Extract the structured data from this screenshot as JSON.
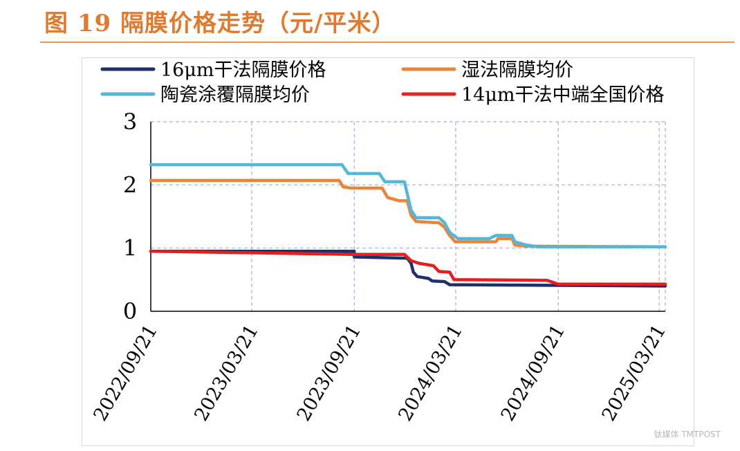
{
  "figure": {
    "title": "图 19  隔膜价格走势（元/平米）"
  },
  "chart_data": {
    "type": "line",
    "title": "",
    "xlabel": "",
    "ylabel": "",
    "ylim": [
      0,
      3
    ],
    "yticks": [
      "0",
      "1",
      "2",
      "3"
    ],
    "x_range": [
      "2022/09/21",
      "2025/04/01"
    ],
    "xticks": [
      "2022/09/21",
      "2023/03/21",
      "2023/09/21",
      "2024/03/21",
      "2024/09/21",
      "2025/03/21"
    ],
    "grid": true,
    "legend_position": "top",
    "series": [
      {
        "name": "16μm干法隔膜价格",
        "color": "#1f2f6b",
        "points": [
          [
            "2022/09/21",
            0.95
          ],
          [
            "2023/09/21",
            0.95
          ],
          [
            "2023/09/21",
            0.86
          ],
          [
            "2023/12/25",
            0.84
          ],
          [
            "2024/01/01",
            0.76
          ],
          [
            "2024/01/05",
            0.62
          ],
          [
            "2024/01/12",
            0.55
          ],
          [
            "2024/02/01",
            0.52
          ],
          [
            "2024/02/08",
            0.48
          ],
          [
            "2024/03/01",
            0.47
          ],
          [
            "2024/03/10",
            0.42
          ],
          [
            "2025/04/01",
            0.4
          ]
        ]
      },
      {
        "name": "湿法隔膜均价",
        "color": "#e8853b",
        "points": [
          [
            "2022/09/21",
            2.07
          ],
          [
            "2023/08/25",
            2.07
          ],
          [
            "2023/09/01",
            1.97
          ],
          [
            "2023/09/15",
            1.95
          ],
          [
            "2023/11/10",
            1.95
          ],
          [
            "2023/11/20",
            1.8
          ],
          [
            "2023/12/10",
            1.75
          ],
          [
            "2023/12/25",
            1.75
          ],
          [
            "2024/01/01",
            1.52
          ],
          [
            "2024/01/10",
            1.42
          ],
          [
            "2024/02/20",
            1.4
          ],
          [
            "2024/03/01",
            1.33
          ],
          [
            "2024/03/10",
            1.2
          ],
          [
            "2024/03/20",
            1.1
          ],
          [
            "2024/06/01",
            1.1
          ],
          [
            "2024/06/05",
            1.15
          ],
          [
            "2024/06/30",
            1.15
          ],
          [
            "2024/07/05",
            1.05
          ],
          [
            "2024/07/25",
            1.03
          ],
          [
            "2025/04/01",
            1.02
          ]
        ]
      },
      {
        "name": "陶瓷涂覆隔膜均价",
        "color": "#55b7d8",
        "points": [
          [
            "2022/09/21",
            2.32
          ],
          [
            "2023/08/30",
            2.32
          ],
          [
            "2023/09/10",
            2.18
          ],
          [
            "2023/11/05",
            2.18
          ],
          [
            "2023/11/15",
            2.05
          ],
          [
            "2023/12/20",
            2.05
          ],
          [
            "2024/01/01",
            1.6
          ],
          [
            "2024/01/10",
            1.48
          ],
          [
            "2024/02/20",
            1.48
          ],
          [
            "2024/03/01",
            1.4
          ],
          [
            "2024/03/10",
            1.25
          ],
          [
            "2024/03/25",
            1.15
          ],
          [
            "2024/05/20",
            1.15
          ],
          [
            "2024/06/01",
            1.2
          ],
          [
            "2024/06/30",
            1.2
          ],
          [
            "2024/07/05",
            1.1
          ],
          [
            "2024/07/25",
            1.05
          ],
          [
            "2024/08/15",
            1.02
          ],
          [
            "2025/04/01",
            1.02
          ]
        ]
      },
      {
        "name": "14μm干法中端全国价格",
        "color": "#e41f1f",
        "points": [
          [
            "2022/09/21",
            0.95
          ],
          [
            "2023/09/21",
            0.9
          ],
          [
            "2023/12/20",
            0.9
          ],
          [
            "2024/01/01",
            0.8
          ],
          [
            "2024/01/15",
            0.76
          ],
          [
            "2024/02/10",
            0.72
          ],
          [
            "2024/02/20",
            0.63
          ],
          [
            "2024/03/10",
            0.62
          ],
          [
            "2024/03/18",
            0.5
          ],
          [
            "2024/09/01",
            0.49
          ],
          [
            "2024/09/21",
            0.43
          ],
          [
            "2025/04/01",
            0.43
          ]
        ]
      }
    ]
  },
  "watermark": {
    "text": "钛媒体 TMTPOST"
  }
}
